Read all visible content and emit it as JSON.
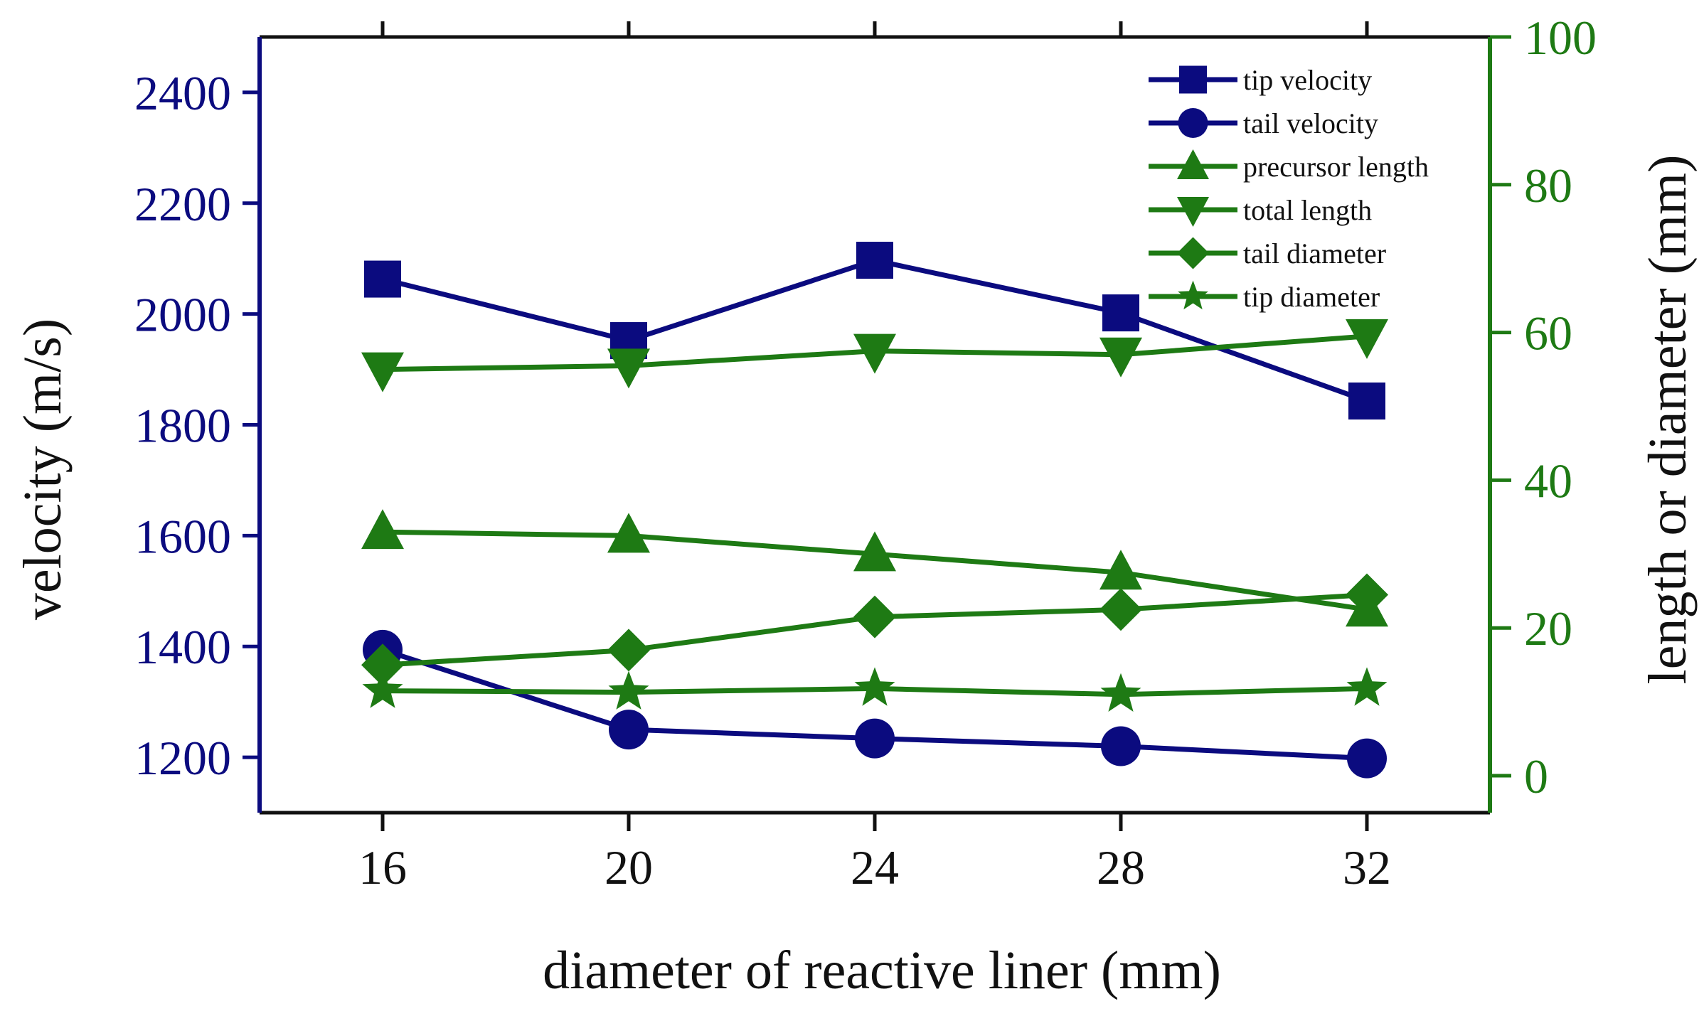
{
  "chart_data": {
    "type": "line",
    "xlabel": "diameter of reactive liner (mm)",
    "ylabel_left": "velocity (m/s)",
    "ylabel_right": "length or diameter (mm)",
    "x": [
      16,
      20,
      24,
      28,
      32
    ],
    "xlim": [
      14,
      34
    ],
    "xticks": [
      "16",
      "20",
      "24",
      "28",
      "32"
    ],
    "ylim_left": [
      1100,
      2500
    ],
    "yticks_left": [
      "1200",
      "1400",
      "1600",
      "1800",
      "2000",
      "2200",
      "2400"
    ],
    "ylim_right": [
      -5,
      100
    ],
    "yticks_right": [
      "0",
      "20",
      "40",
      "60",
      "80",
      "100"
    ],
    "colors": {
      "left_axis": "#0b0b7f",
      "right_axis": "#1e7a14"
    },
    "series": [
      {
        "name": "tip velocity",
        "axis": "left",
        "marker": "square",
        "color": "#0b0b7f",
        "values": [
          2063,
          1952,
          2097,
          2002,
          1843
        ]
      },
      {
        "name": "tail velocity",
        "axis": "left",
        "marker": "circle",
        "color": "#0b0b7f",
        "values": [
          1394,
          1250,
          1234,
          1220,
          1198
        ]
      },
      {
        "name": "precursor length",
        "axis": "right",
        "marker": "triangle-up",
        "color": "#1e7a14",
        "values": [
          33,
          32.5,
          30,
          27.5,
          22.5
        ]
      },
      {
        "name": "total length",
        "axis": "right",
        "marker": "triangle-down",
        "color": "#1e7a14",
        "values": [
          55,
          55.5,
          57.5,
          57,
          59.5
        ]
      },
      {
        "name": "tail diameter",
        "axis": "right",
        "marker": "diamond",
        "color": "#1e7a14",
        "values": [
          15,
          17,
          21.5,
          22.5,
          24.5
        ]
      },
      {
        "name": "tip diameter",
        "axis": "right",
        "marker": "star",
        "color": "#1e7a14",
        "values": [
          11.5,
          11.3,
          11.8,
          11,
          11.8
        ]
      }
    ]
  }
}
